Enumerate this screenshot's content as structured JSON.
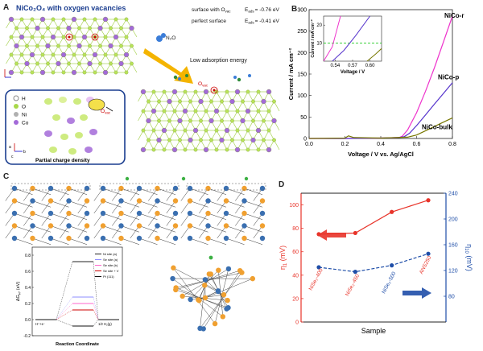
{
  "panel_labels": {
    "a": "A",
    "b": "B",
    "c": "C",
    "d": "D"
  },
  "panel_a": {
    "title": "NiCo₂O₄ with oxygen vacancies",
    "energy1_label": "surface with O",
    "energy1_sub": "vac",
    "energy1_value": "E",
    "energy1_value_sub": "ads",
    "energy1_num": "= -0.76 eV",
    "energy2_label": "perfect surface",
    "energy2_value": "E",
    "energy2_value_sub": "ads",
    "energy2_num": "= -0.41 eV",
    "n2o_label": "N₂O",
    "arrow_label": "Low adsorption energy",
    "ovac_label": "O",
    "ovac_sub": "vac",
    "legend": [
      "H",
      "O",
      "Ni",
      "Co"
    ],
    "legend_ovac": "O",
    "legend_ovac_sub": "vac",
    "charge_caption": "Partial charge density",
    "axis_a": "a",
    "axis_b": "b",
    "axis_c": "c"
  },
  "panel_c": {
    "ylabel": "ΔG",
    "ylabel_sub": "H*",
    "ylabel_unit": "(eV)",
    "xlabel": "Reaction Coordinate",
    "left_state": "H⁺+e⁻",
    "right_state": "1/2 H₂(g)",
    "yticks": [
      "0.8",
      "0.6",
      "0.4",
      "0.2",
      "0.0",
      "-0.2"
    ],
    "legend": [
      {
        "label": "Ni site (a)",
        "color": "#222222"
      },
      {
        "label": "Se site (a)",
        "color": "#8c8cff"
      },
      {
        "label": "Se site (b)",
        "color": "#ff66cc"
      },
      {
        "label": "Se site + V",
        "color": "#cc0000"
      },
      {
        "label": "Pt (111)",
        "color": "#111111"
      }
    ]
  },
  "chart_data": [
    {
      "type": "line",
      "panel": "B",
      "xlabel": "Voltage / V   vs. Ag/AgCl",
      "ylabel": "Current / mA cm⁻²",
      "xlim": [
        0.0,
        0.8
      ],
      "ylim": [
        0,
        300
      ],
      "xticks": [
        "0.0",
        "0.2",
        "0.4",
        "0.6",
        "0.8"
      ],
      "yticks": [
        "0",
        "50",
        "100",
        "150",
        "200",
        "250",
        "300"
      ],
      "series": [
        {
          "name": "NiCo-r",
          "color": "#ee33cc",
          "x": [
            0.0,
            0.2,
            0.4,
            0.5,
            0.52,
            0.55,
            0.6,
            0.65,
            0.7,
            0.75,
            0.8
          ],
          "y": [
            0,
            0,
            1,
            2,
            5,
            20,
            60,
            110,
            165,
            225,
            285
          ]
        },
        {
          "name": "NiCo-p",
          "color": "#5533cc",
          "x": [
            0.0,
            0.2,
            0.4,
            0.5,
            0.53,
            0.56,
            0.6,
            0.65,
            0.7,
            0.75,
            0.8
          ],
          "y": [
            0,
            0,
            1,
            2,
            4,
            12,
            30,
            55,
            80,
            105,
            130
          ]
        },
        {
          "name": "NiCo-bulk",
          "color": "#777700",
          "x": [
            0.0,
            0.2,
            0.22,
            0.25,
            0.4,
            0.55,
            0.6,
            0.65,
            0.7,
            0.75,
            0.8
          ],
          "y": [
            0,
            1,
            6,
            2,
            1,
            3,
            8,
            18,
            28,
            38,
            48
          ]
        }
      ],
      "inset": {
        "xlabel": "Voltage / V",
        "ylabel": "Current / mA cm⁻²",
        "xlim": [
          0.52,
          0.62
        ],
        "ylim": [
          0,
          25
        ],
        "xticks": [
          "0.54",
          "0.57",
          "0.60"
        ],
        "yticks": [
          "10",
          "20"
        ],
        "reference_y": 10,
        "reference_color": "#22cc22"
      }
    },
    {
      "type": "line",
      "panel": "D",
      "xlabel": "Sample",
      "ylabel_left": "η",
      "ylabel_left_sub": "1",
      "ylabel_left_unit": "(mV)",
      "ylabel_right": "η",
      "ylabel_right_sub": "10",
      "ylabel_right_unit": "(mV)",
      "categories": [
        "NiSe₂-400",
        "NiSe₂-450",
        "NiSe₂-500",
        "ANS250"
      ],
      "ylim_left": [
        0,
        110
      ],
      "ylim_right": [
        40,
        240
      ],
      "yticks_left": [
        "0",
        "20",
        "40",
        "60",
        "80",
        "100"
      ],
      "yticks_right": [
        "80",
        "120",
        "160",
        "200",
        "240"
      ],
      "series": [
        {
          "name": "η₁",
          "axis": "left",
          "color": "#e8342a",
          "values": [
            75,
            76,
            94,
            104
          ]
        },
        {
          "name": "η₁₀",
          "axis": "right",
          "color": "#1f4ea8",
          "values": [
            125,
            118,
            128,
            146
          ]
        }
      ]
    }
  ]
}
